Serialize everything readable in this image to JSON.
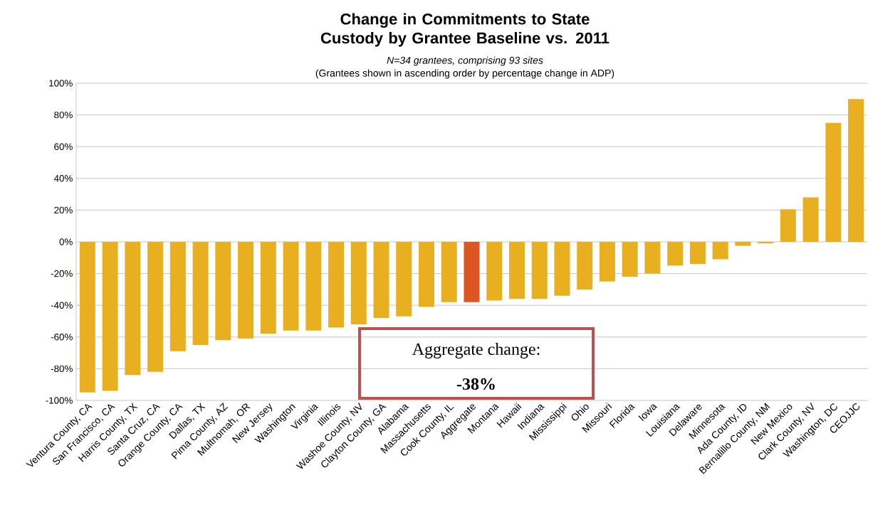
{
  "chart_data": {
    "type": "bar",
    "title": "Change in Commitments to State Custody by Grantee Baseline vs. 2011",
    "subtitle": "N=34 grantees, comprising 93 sites",
    "annotations": [
      "(Grantees shown in ascending order by percentage change in ADP)",
      "Aggregate change:",
      "-38%"
    ],
    "categories": [
      "Ventura County, CA",
      "San Francisco, CA",
      "Harris County, TX",
      "Santa Cruz, CA",
      "Orange County, CA",
      "Dallas, TX",
      "Pima County, AZ",
      "Multnomah, OR",
      "New Jersey",
      "Washington",
      "Virginia",
      "Illinois",
      "Washoe County, NV",
      "Clayton County, GA",
      "Alabama",
      "Massachusetts",
      "Cook County, IL",
      "Aggregate",
      "Montana",
      "Hawaii",
      "Indiana",
      "Mississippi",
      "Ohio",
      "Missouri",
      "Florida",
      "Iowa",
      "Louisiana",
      "Delaware",
      "Minnesota",
      "Ada County, ID",
      "Bernalillo County, NM",
      "New Mexico",
      "Clark County, NV",
      "Washington, DC",
      "CEOJJC"
    ],
    "values": [
      -95,
      -94,
      -84,
      -82,
      -69,
      -65,
      -62,
      -61,
      -58,
      -56,
      -56,
      -54,
      -52,
      -48,
      -47,
      -41,
      -38,
      -38,
      -37,
      -36,
      -36,
      -34,
      -30,
      -25,
      -22,
      -20,
      -15,
      -14,
      -11,
      -2.5,
      -1,
      20.5,
      28,
      75,
      90
    ],
    "colors": [
      "#e8b020",
      "#e8b020",
      "#e8b020",
      "#e8b020",
      "#e8b020",
      "#e8b020",
      "#e8b020",
      "#e8b020",
      "#e8b020",
      "#e8b020",
      "#e8b020",
      "#e8b020",
      "#e8b020",
      "#e8b020",
      "#e8b020",
      "#e8b020",
      "#e8b020",
      "#dd5522",
      "#e8b020",
      "#e8b020",
      "#e8b020",
      "#e8b020",
      "#e8b020",
      "#e8b020",
      "#e8b020",
      "#e8b020",
      "#e8b020",
      "#e8b020",
      "#e8b020",
      "#e8b020",
      "#e8b020",
      "#e8b020",
      "#e8b020",
      "#e8b020",
      "#e8b020"
    ],
    "ylim": [
      -100,
      100
    ],
    "yticks": [
      {
        "value": -100,
        "label": "-100%"
      },
      {
        "value": -80,
        "label": "-80%"
      },
      {
        "value": -60,
        "label": "-60%"
      },
      {
        "value": -40,
        "label": "-40%"
      },
      {
        "value": -20,
        "label": "-20%"
      },
      {
        "value": 0,
        "label": "0%"
      },
      {
        "value": 20,
        "label": "20%"
      },
      {
        "value": 40,
        "label": "40%"
      },
      {
        "value": 60,
        "label": "60%"
      },
      {
        "value": 80,
        "label": "80%"
      },
      {
        "value": 100,
        "label": "100%"
      }
    ],
    "grid": "y"
  }
}
